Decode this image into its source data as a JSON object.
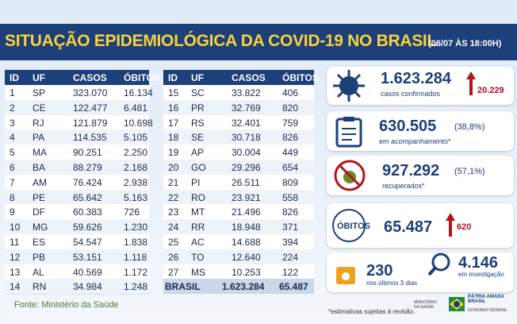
{
  "header": {
    "title": "SITUAÇÃO EPIDEMIOLÓGICA DA COVID-19 NO BRASIL",
    "date": "(06/07 ÀS 18:00H)"
  },
  "tables": [
    {
      "columns": [
        "ID",
        "UF",
        "CASOS",
        "ÓBITOS"
      ],
      "rows": [
        [
          "1",
          "SP",
          "323.070",
          "16.134"
        ],
        [
          "2",
          "CE",
          "122.477",
          "6.481"
        ],
        [
          "3",
          "RJ",
          "121.879",
          "10.698"
        ],
        [
          "4",
          "PA",
          "114.535",
          "5.105"
        ],
        [
          "5",
          "MA",
          "90.251",
          "2.250"
        ],
        [
          "6",
          "BA",
          "88.279",
          "2.168"
        ],
        [
          "7",
          "AM",
          "76.424",
          "2.938"
        ],
        [
          "8",
          "PE",
          "65.642",
          "5.163"
        ],
        [
          "9",
          "DF",
          "60.383",
          "726"
        ],
        [
          "10",
          "MG",
          "59.626",
          "1.230"
        ],
        [
          "11",
          "ES",
          "54.547",
          "1.838"
        ],
        [
          "12",
          "PB",
          "53.151",
          "1.118"
        ],
        [
          "13",
          "AL",
          "40.569",
          "1.172"
        ],
        [
          "14",
          "RN",
          "34.984",
          "1.248"
        ]
      ]
    },
    {
      "columns": [
        "ID",
        "UF",
        "CASOS",
        "ÓBITOS"
      ],
      "rows": [
        [
          "15",
          "SC",
          "33.822",
          "406"
        ],
        [
          "16",
          "PR",
          "32.769",
          "820"
        ],
        [
          "17",
          "RS",
          "32.401",
          "759"
        ],
        [
          "18",
          "SE",
          "30.718",
          "826"
        ],
        [
          "19",
          "AP",
          "30.004",
          "449"
        ],
        [
          "20",
          "GO",
          "29.296",
          "654"
        ],
        [
          "21",
          "PI",
          "26.511",
          "809"
        ],
        [
          "22",
          "RO",
          "23.921",
          "558"
        ],
        [
          "23",
          "MT",
          "21.496",
          "826"
        ],
        [
          "24",
          "RR",
          "18.948",
          "371"
        ],
        [
          "25",
          "AC",
          "14.688",
          "394"
        ],
        [
          "26",
          "TO",
          "12.640",
          "224"
        ],
        [
          "27",
          "MS",
          "10.253",
          "122"
        ]
      ],
      "total": [
        "BRASIL",
        "1.623.284",
        "65.487"
      ]
    }
  ],
  "stats": {
    "confirmed": {
      "value": "1.623.284",
      "label": "casos confirmados",
      "change": "20.229"
    },
    "monitoring": {
      "value": "630.505",
      "percent": "(38,8%)",
      "label": "em acompanhamento*"
    },
    "recovered": {
      "value": "927.292",
      "percent": "(57,1%)",
      "label": "recuperados*"
    },
    "deaths": {
      "title": "ÓBITOS",
      "value": "65.487",
      "change": "620"
    },
    "recent": {
      "value": "230",
      "label": "nos últimos 3 dias"
    },
    "investigation": {
      "value": "4.146",
      "label": "em investigação"
    }
  },
  "footer": {
    "source": "Fonte: Ministério da Saúde",
    "note": "*estimativas sujeitas à revisão.",
    "ministry": "MINISTÉRIO DA SAÚDE",
    "slogan": "PÁTRIA AMADA BRASIL",
    "government": "GOVERNO FEDERAL"
  }
}
